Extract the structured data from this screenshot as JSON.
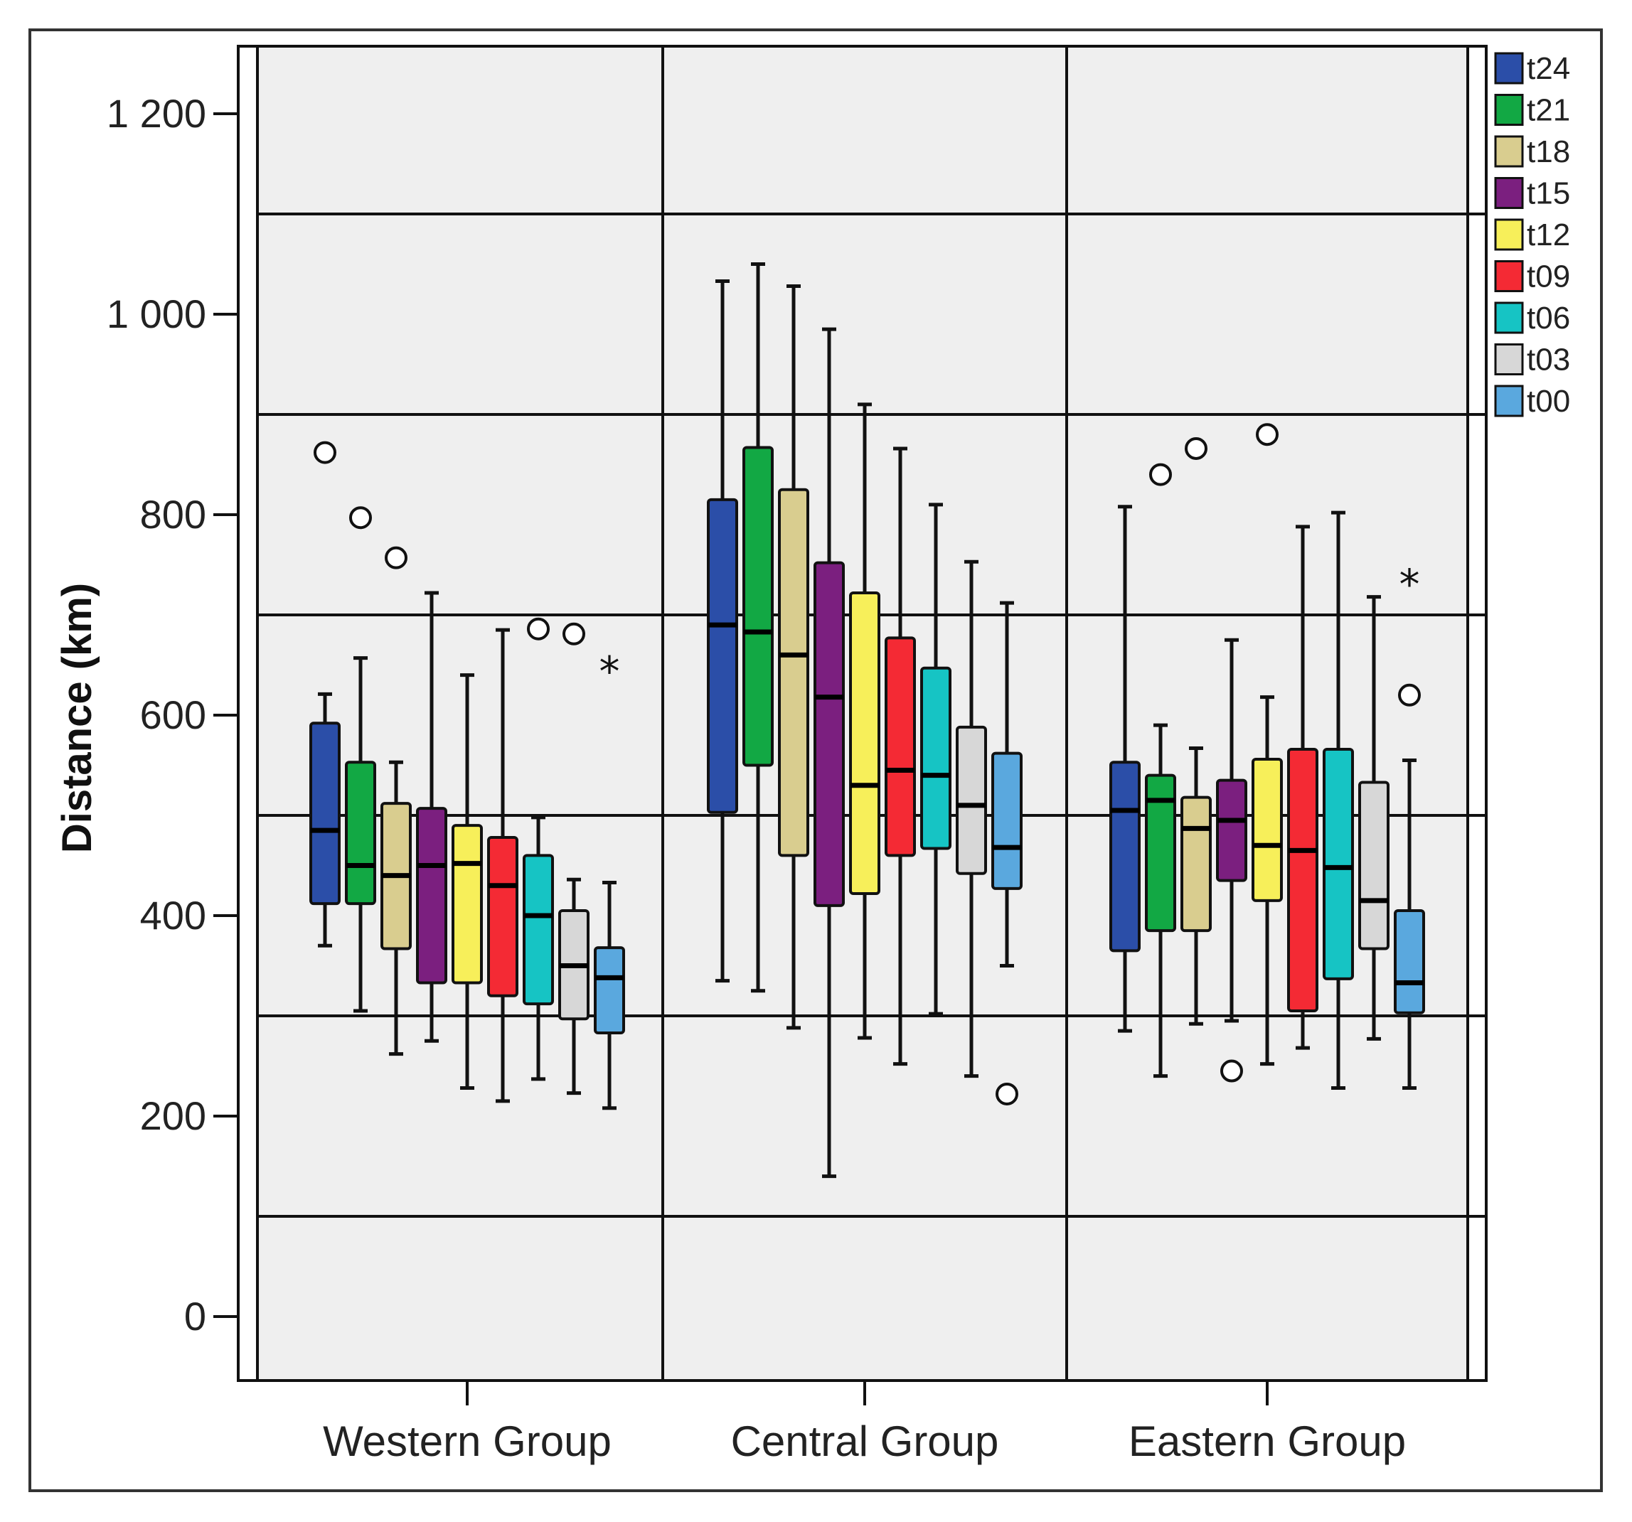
{
  "chart_data": {
    "type": "boxplot",
    "ylabel": "Distance (km)",
    "xlabel": "",
    "ylim": [
      -100,
      1270
    ],
    "y_ticks": [
      {
        "value": 0,
        "label": "0"
      },
      {
        "value": 200,
        "label": "200"
      },
      {
        "value": 400,
        "label": "400"
      },
      {
        "value": 600,
        "label": "600"
      },
      {
        "value": 800,
        "label": "800"
      },
      {
        "value": 1000,
        "label": "1 000"
      },
      {
        "value": 1200,
        "label": "1 200"
      }
    ],
    "gridlines": [
      100,
      300,
      500,
      700,
      900,
      1100
    ],
    "categories": [
      "Western Group",
      "Central Group",
      "Eastern Group"
    ],
    "legend_position": "top-right",
    "series": [
      {
        "name": "t24",
        "color": "#2b4ea8",
        "boxes": [
          {
            "whisker_low": 370,
            "q1": 412,
            "median": 485,
            "q3": 592,
            "whisker_high": 621,
            "outliers": [
              {
                "value": 862,
                "marker": "circle"
              }
            ]
          },
          {
            "whisker_low": 335,
            "q1": 503,
            "median": 690,
            "q3": 815,
            "whisker_high": 1033,
            "outliers": []
          },
          {
            "whisker_low": 285,
            "q1": 365,
            "median": 505,
            "q3": 553,
            "whisker_high": 808,
            "outliers": []
          }
        ]
      },
      {
        "name": "t21",
        "color": "#12a844",
        "boxes": [
          {
            "whisker_low": 305,
            "q1": 412,
            "median": 450,
            "q3": 553,
            "whisker_high": 657,
            "outliers": [
              {
                "value": 797,
                "marker": "circle"
              }
            ]
          },
          {
            "whisker_low": 325,
            "q1": 550,
            "median": 683,
            "q3": 867,
            "whisker_high": 1050,
            "outliers": []
          },
          {
            "whisker_low": 240,
            "q1": 385,
            "median": 515,
            "q3": 540,
            "whisker_high": 590,
            "outliers": [
              {
                "value": 840,
                "marker": "circle"
              }
            ]
          }
        ]
      },
      {
        "name": "t18",
        "color": "#d9cd8f",
        "boxes": [
          {
            "whisker_low": 262,
            "q1": 367,
            "median": 440,
            "q3": 512,
            "whisker_high": 553,
            "outliers": [
              {
                "value": 757,
                "marker": "circle"
              }
            ]
          },
          {
            "whisker_low": 288,
            "q1": 460,
            "median": 660,
            "q3": 825,
            "whisker_high": 1028,
            "outliers": []
          },
          {
            "whisker_low": 292,
            "q1": 385,
            "median": 487,
            "q3": 518,
            "whisker_high": 567,
            "outliers": [
              {
                "value": 866,
                "marker": "circle"
              }
            ]
          }
        ]
      },
      {
        "name": "t15",
        "color": "#7b1f7f",
        "boxes": [
          {
            "whisker_low": 275,
            "q1": 333,
            "median": 450,
            "q3": 507,
            "whisker_high": 722,
            "outliers": []
          },
          {
            "whisker_low": 140,
            "q1": 410,
            "median": 618,
            "q3": 752,
            "whisker_high": 985,
            "outliers": []
          },
          {
            "whisker_low": 295,
            "q1": 435,
            "median": 495,
            "q3": 535,
            "whisker_high": 675,
            "outliers": [
              {
                "value": 245,
                "marker": "circle"
              }
            ]
          }
        ]
      },
      {
        "name": "t12",
        "color": "#f7ef5a",
        "boxes": [
          {
            "whisker_low": 228,
            "q1": 333,
            "median": 452,
            "q3": 490,
            "whisker_high": 640,
            "outliers": []
          },
          {
            "whisker_low": 278,
            "q1": 422,
            "median": 530,
            "q3": 722,
            "whisker_high": 910,
            "outliers": []
          },
          {
            "whisker_low": 252,
            "q1": 415,
            "median": 470,
            "q3": 556,
            "whisker_high": 618,
            "outliers": [
              {
                "value": 880,
                "marker": "circle"
              }
            ]
          }
        ]
      },
      {
        "name": "t09",
        "color": "#f42a34",
        "boxes": [
          {
            "whisker_low": 215,
            "q1": 320,
            "median": 430,
            "q3": 478,
            "whisker_high": 685,
            "outliers": []
          },
          {
            "whisker_low": 252,
            "q1": 460,
            "median": 545,
            "q3": 677,
            "whisker_high": 866,
            "outliers": []
          },
          {
            "whisker_low": 268,
            "q1": 305,
            "median": 465,
            "q3": 566,
            "whisker_high": 788,
            "outliers": []
          }
        ]
      },
      {
        "name": "t06",
        "color": "#16c4c4",
        "boxes": [
          {
            "whisker_low": 237,
            "q1": 312,
            "median": 400,
            "q3": 460,
            "whisker_high": 498,
            "outliers": [
              {
                "value": 686,
                "marker": "circle"
              }
            ]
          },
          {
            "whisker_low": 302,
            "q1": 467,
            "median": 540,
            "q3": 647,
            "whisker_high": 810,
            "outliers": []
          },
          {
            "whisker_low": 228,
            "q1": 337,
            "median": 448,
            "q3": 566,
            "whisker_high": 802,
            "outliers": []
          }
        ]
      },
      {
        "name": "t03",
        "color": "#d7d7d7",
        "boxes": [
          {
            "whisker_low": 223,
            "q1": 297,
            "median": 350,
            "q3": 405,
            "whisker_high": 436,
            "outliers": [
              {
                "value": 681,
                "marker": "circle"
              }
            ]
          },
          {
            "whisker_low": 240,
            "q1": 442,
            "median": 510,
            "q3": 588,
            "whisker_high": 753,
            "outliers": []
          },
          {
            "whisker_low": 277,
            "q1": 367,
            "median": 415,
            "q3": 533,
            "whisker_high": 718,
            "outliers": []
          }
        ]
      },
      {
        "name": "t00",
        "color": "#5aa8de",
        "boxes": [
          {
            "whisker_low": 208,
            "q1": 283,
            "median": 338,
            "q3": 368,
            "whisker_high": 433,
            "outliers": [
              {
                "value": 645,
                "marker": "star"
              }
            ]
          },
          {
            "whisker_low": 350,
            "q1": 427,
            "median": 468,
            "q3": 562,
            "whisker_high": 712,
            "outliers": [
              {
                "value": 222,
                "marker": "circle"
              }
            ]
          },
          {
            "whisker_low": 228,
            "q1": 303,
            "median": 333,
            "q3": 405,
            "whisker_high": 555,
            "outliers": [
              {
                "value": 620,
                "marker": "circle"
              },
              {
                "value": 732,
                "marker": "star"
              }
            ]
          }
        ]
      }
    ]
  }
}
